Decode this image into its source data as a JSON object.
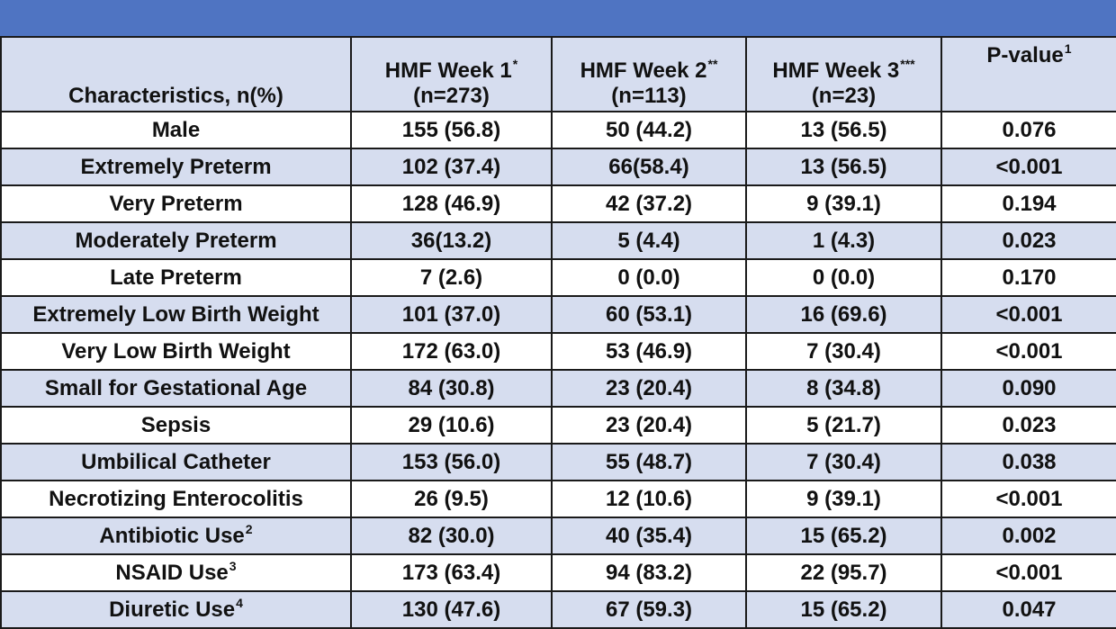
{
  "header": {
    "characteristics": "Characteristics, n(%)",
    "week1": {
      "label": "HMF Week 1",
      "sup": "*",
      "n": "(n=273)"
    },
    "week2": {
      "label": "HMF Week 2",
      "sup": "**",
      "n": "(n=113)"
    },
    "week3": {
      "label": "HMF Week 3",
      "sup": "***",
      "n": "(n=23)"
    },
    "pvalue": {
      "label": "P-value",
      "sup": "1"
    }
  },
  "rows": [
    {
      "name": "Male",
      "sup": "",
      "w1": "155 (56.8)",
      "w2": "50 (44.2)",
      "w3": "13 (56.5)",
      "p": "0.076"
    },
    {
      "name": "Extremely Preterm",
      "sup": "",
      "w1": "102 (37.4)",
      "w2": "66(58.4)",
      "w3": "13 (56.5)",
      "p": "<0.001"
    },
    {
      "name": "Very Preterm",
      "sup": "",
      "w1": "128 (46.9)",
      "w2": "42 (37.2)",
      "w3": "9 (39.1)",
      "p": "0.194"
    },
    {
      "name": "Moderately Preterm",
      "sup": "",
      "w1": "36(13.2)",
      "w2": "5 (4.4)",
      "w3": "1 (4.3)",
      "p": "0.023"
    },
    {
      "name": "Late Preterm",
      "sup": "",
      "w1": "7 (2.6)",
      "w2": "0 (0.0)",
      "w3": "0 (0.0)",
      "p": "0.170"
    },
    {
      "name": "Extremely Low Birth Weight",
      "sup": "",
      "w1": "101 (37.0)",
      "w2": "60 (53.1)",
      "w3": "16 (69.6)",
      "p": "<0.001"
    },
    {
      "name": "Very Low Birth Weight",
      "sup": "",
      "w1": "172 (63.0)",
      "w2": "53 (46.9)",
      "w3": "7 (30.4)",
      "p": "<0.001"
    },
    {
      "name": "Small for Gestational Age",
      "sup": "",
      "w1": "84 (30.8)",
      "w2": "23 (20.4)",
      "w3": "8 (34.8)",
      "p": "0.090"
    },
    {
      "name": "Sepsis",
      "sup": "",
      "w1": "29 (10.6)",
      "w2": "23 (20.4)",
      "w3": "5 (21.7)",
      "p": "0.023"
    },
    {
      "name": "Umbilical Catheter",
      "sup": "",
      "w1": "153 (56.0)",
      "w2": "55 (48.7)",
      "w3": "7 (30.4)",
      "p": "0.038"
    },
    {
      "name": "Necrotizing Enterocolitis",
      "sup": "",
      "w1": "26 (9.5)",
      "w2": "12 (10.6)",
      "w3": "9 (39.1)",
      "p": "<0.001"
    },
    {
      "name": "Antibiotic Use",
      "sup": "2",
      "w1": "82 (30.0)",
      "w2": "40 (35.4)",
      "w3": "15 (65.2)",
      "p": "0.002"
    },
    {
      "name": "NSAID Use",
      "sup": "3",
      "w1": "173 (63.4)",
      "w2": "94 (83.2)",
      "w3": "22 (95.7)",
      "p": "<0.001"
    },
    {
      "name": "Diuretic Use",
      "sup": "4",
      "w1": "130 (47.6)",
      "w2": "67 (59.3)",
      "w3": "15 (65.2)",
      "p": "0.047"
    }
  ]
}
